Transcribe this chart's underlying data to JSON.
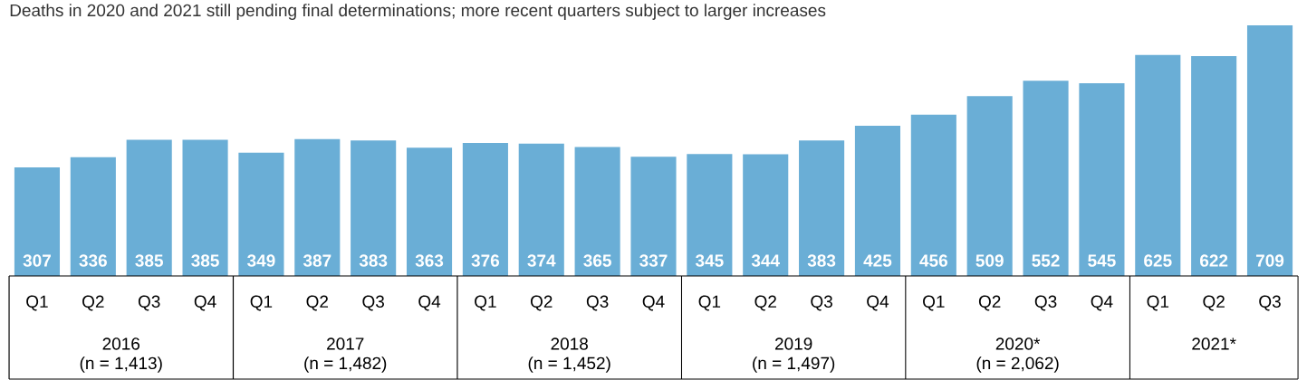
{
  "chart_data": {
    "type": "bar",
    "subtitle": "Deaths in 2020 and 2021 still pending final determinations; more recent quarters subject to larger increases",
    "categories": [
      "Q1",
      "Q2",
      "Q3",
      "Q4",
      "Q1",
      "Q2",
      "Q3",
      "Q4",
      "Q1",
      "Q2",
      "Q3",
      "Q4",
      "Q1",
      "Q2",
      "Q3",
      "Q4",
      "Q1",
      "Q2",
      "Q3",
      "Q4",
      "Q1",
      "Q2",
      "Q3"
    ],
    "values": [
      307,
      336,
      385,
      385,
      349,
      387,
      383,
      363,
      376,
      374,
      365,
      337,
      345,
      344,
      383,
      425,
      456,
      509,
      552,
      545,
      625,
      622,
      709
    ],
    "color": "#6aaed6",
    "data_labels": true,
    "annotations": [
      "2016",
      "(n = 1,413)",
      "2017",
      "(n = 1,482)",
      "2018",
      "(n = 1,452)",
      "2019",
      "(n = 1,497)",
      "2020*",
      "(n = 2,062)",
      "2021*"
    ]
  }
}
